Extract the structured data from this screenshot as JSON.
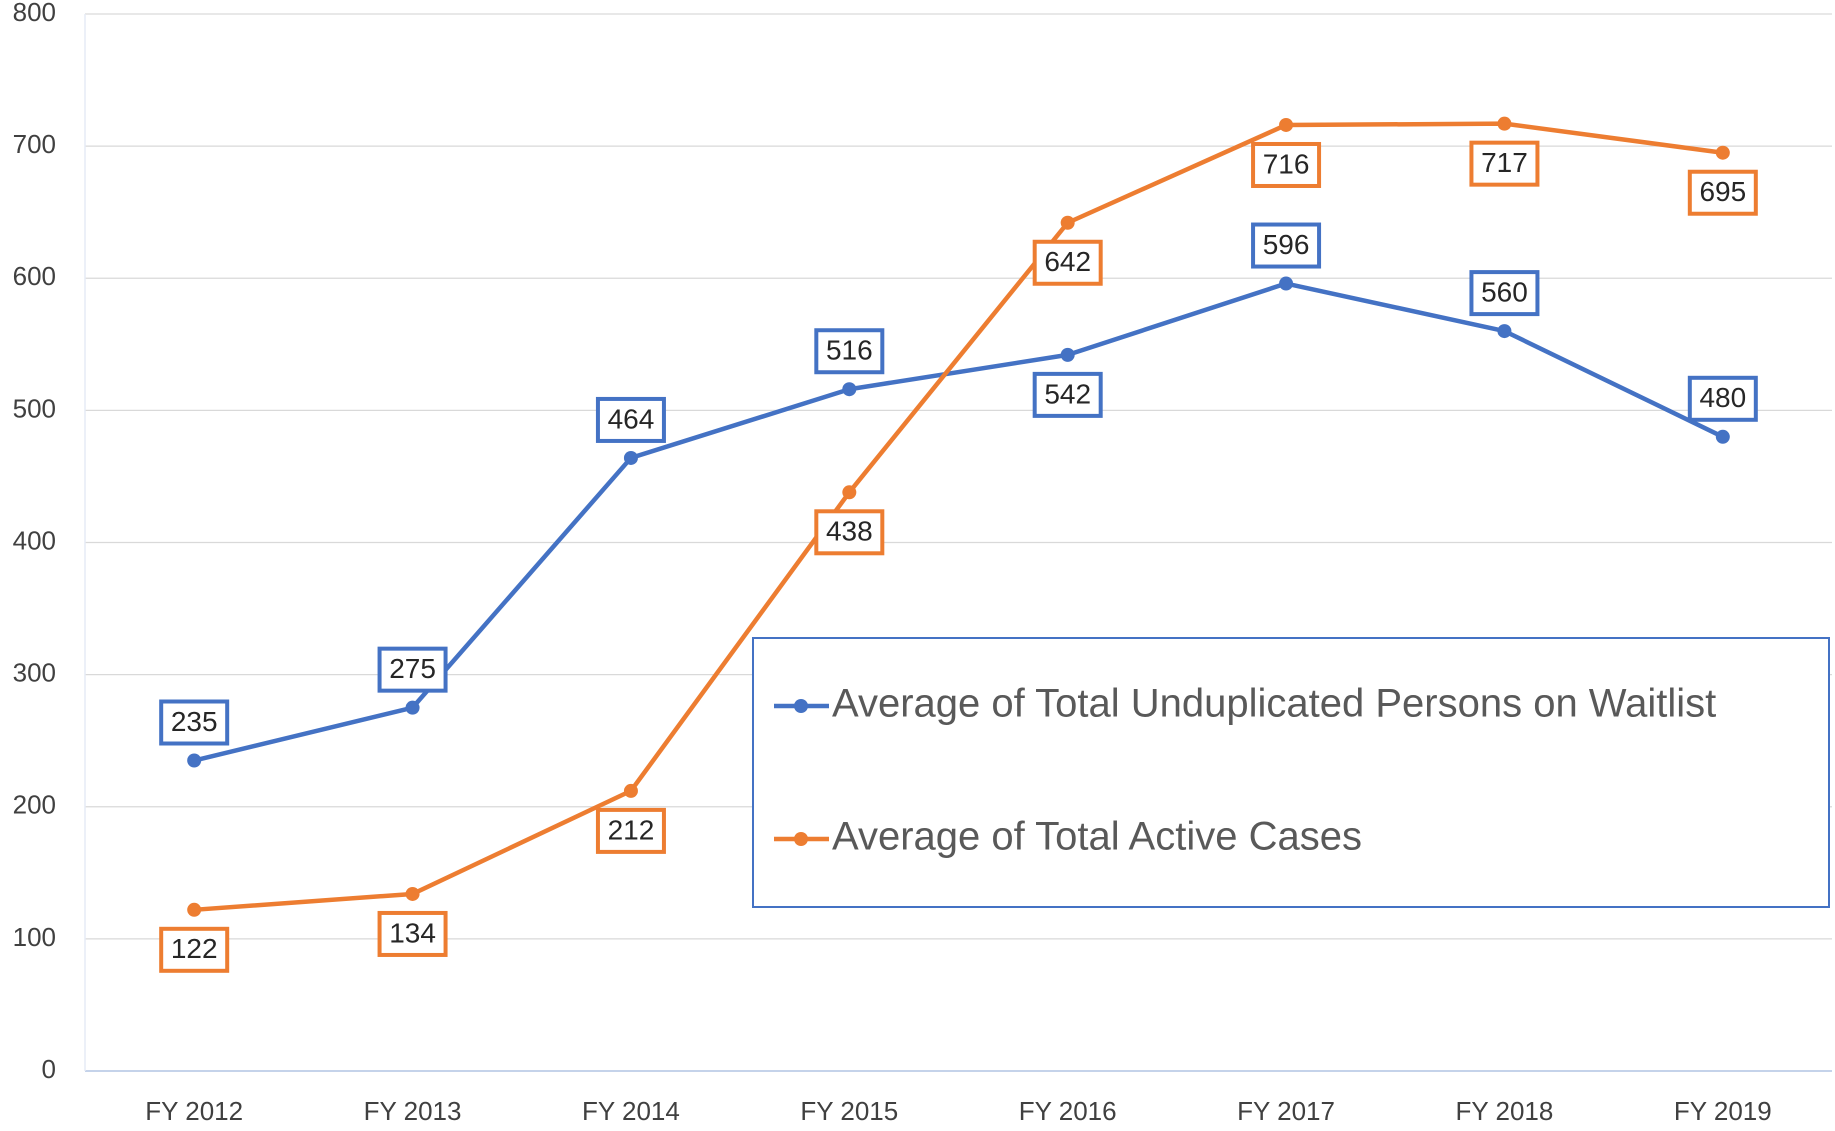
{
  "chart_data": {
    "type": "line",
    "categories": [
      "FY 2012",
      "FY 2013",
      "FY 2014",
      "FY 2015",
      "FY 2016",
      "FY 2017",
      "FY 2018",
      "FY 2019"
    ],
    "series": [
      {
        "name": "Average of Total Unduplicated Persons on Waitlist",
        "color": "#4472c4",
        "values": [
          235,
          275,
          464,
          516,
          542,
          596,
          560,
          480
        ]
      },
      {
        "name": "Average of Total Active Cases",
        "color": "#ed7d31",
        "values": [
          122,
          134,
          212,
          438,
          642,
          716,
          717,
          695
        ]
      }
    ],
    "ylim": [
      0,
      800
    ],
    "yticks": [
      0,
      100,
      200,
      300,
      400,
      500,
      600,
      700,
      800
    ],
    "grid": true
  }
}
